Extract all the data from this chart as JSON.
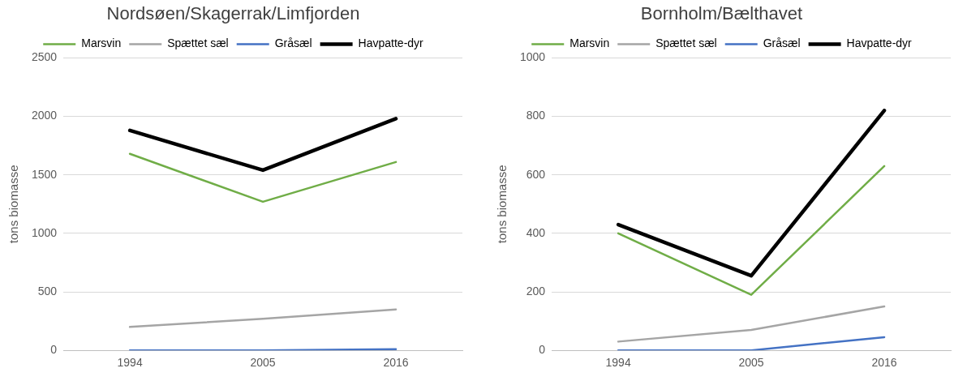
{
  "chart_data": [
    {
      "type": "line",
      "title": "Nordsøen/Skagerrak/Limfjorden",
      "ylabel": "tons biomasse",
      "categories": [
        "1994",
        "2005",
        "2016"
      ],
      "ylim": [
        0,
        2500
      ],
      "yticks": [
        0,
        500,
        1000,
        1500,
        2000,
        2500
      ],
      "grid": "y",
      "legend": "top",
      "marker": "none",
      "line_style": "solid",
      "series": [
        {
          "name": "Marsvin",
          "color": "#70ad47",
          "values": [
            1680,
            1270,
            1610
          ]
        },
        {
          "name": "Spættet sæl",
          "color": "#a5a5a5",
          "values": [
            200,
            270,
            350
          ]
        },
        {
          "name": "Gråsæl",
          "color": "#4472c4",
          "values": [
            0,
            0,
            10
          ]
        },
        {
          "name": "Havpatte-dyr",
          "color": "#000000",
          "values": [
            1880,
            1540,
            1980
          ]
        }
      ]
    },
    {
      "type": "line",
      "title": "Bornholm/Bælthavet",
      "ylabel": "tons biomasse",
      "categories": [
        "1994",
        "2005",
        "2016"
      ],
      "ylim": [
        0,
        1000
      ],
      "yticks": [
        0,
        200,
        400,
        600,
        800,
        1000
      ],
      "grid": "y",
      "legend": "top",
      "marker": "none",
      "line_style": "solid",
      "series": [
        {
          "name": "Marsvin",
          "color": "#70ad47",
          "values": [
            400,
            190,
            630
          ]
        },
        {
          "name": "Spættet sæl",
          "color": "#a5a5a5",
          "values": [
            30,
            70,
            150
          ]
        },
        {
          "name": "Gråsæl",
          "color": "#4472c4",
          "values": [
            0,
            0,
            45
          ]
        },
        {
          "name": "Havpatte-dyr",
          "color": "#000000",
          "values": [
            430,
            255,
            820
          ]
        }
      ]
    }
  ]
}
